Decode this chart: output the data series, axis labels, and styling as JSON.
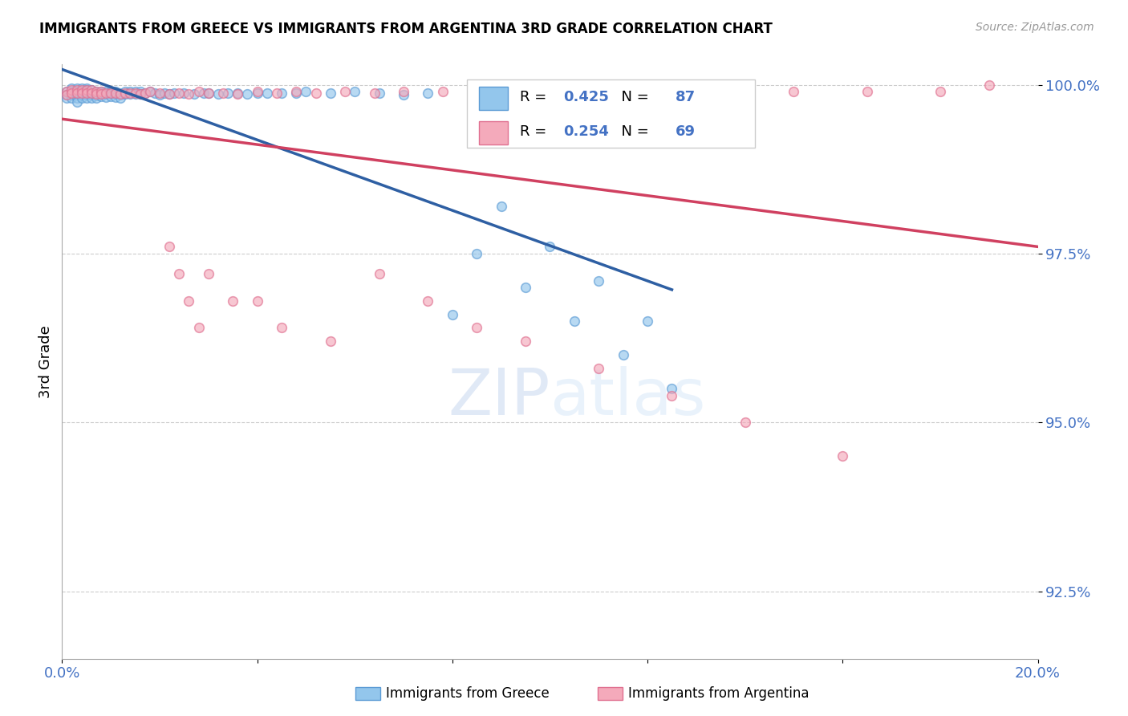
{
  "title": "IMMIGRANTS FROM GREECE VS IMMIGRANTS FROM ARGENTINA 3RD GRADE CORRELATION CHART",
  "source": "Source: ZipAtlas.com",
  "ylabel": "3rd Grade",
  "xlim": [
    0.0,
    0.2
  ],
  "ylim": [
    0.915,
    1.003
  ],
  "yticks": [
    0.925,
    0.95,
    0.975,
    1.0
  ],
  "ytick_labels": [
    "92.5%",
    "95.0%",
    "97.5%",
    "100.0%"
  ],
  "xticks": [
    0.0,
    0.04,
    0.08,
    0.12,
    0.16,
    0.2
  ],
  "xtick_labels": [
    "0.0%",
    "",
    "",
    "",
    "",
    "20.0%"
  ],
  "greece_color": "#93C6EC",
  "argentina_color": "#F4AABB",
  "greece_edge": "#5B9BD5",
  "argentina_edge": "#E07090",
  "trend_greece_color": "#2E5FA3",
  "trend_argentina_color": "#D04060",
  "R_greece": 0.425,
  "N_greece": 87,
  "R_argentina": 0.254,
  "N_argentina": 69,
  "legend_label_greece": "Immigrants from Greece",
  "legend_label_argentina": "Immigrants from Argentina",
  "watermark_zip": "ZIP",
  "watermark_atlas": "atlas",
  "background_color": "#ffffff",
  "tick_color": "#4472C4",
  "title_fontsize": 12,
  "axis_fontsize": 13,
  "marker_size": 70,
  "greece_x": [
    0.001,
    0.001,
    0.001,
    0.002,
    0.002,
    0.002,
    0.002,
    0.003,
    0.003,
    0.003,
    0.003,
    0.003,
    0.004,
    0.004,
    0.004,
    0.004,
    0.005,
    0.005,
    0.005,
    0.005,
    0.005,
    0.006,
    0.006,
    0.006,
    0.006,
    0.007,
    0.007,
    0.007,
    0.007,
    0.008,
    0.008,
    0.008,
    0.009,
    0.009,
    0.009,
    0.01,
    0.01,
    0.01,
    0.011,
    0.011,
    0.011,
    0.012,
    0.012,
    0.012,
    0.013,
    0.013,
    0.014,
    0.014,
    0.015,
    0.015,
    0.016,
    0.016,
    0.017,
    0.018,
    0.019,
    0.02,
    0.021,
    0.022,
    0.023,
    0.025,
    0.027,
    0.029,
    0.03,
    0.032,
    0.034,
    0.036,
    0.038,
    0.04,
    0.042,
    0.045,
    0.048,
    0.05,
    0.055,
    0.06,
    0.065,
    0.07,
    0.075,
    0.08,
    0.085,
    0.09,
    0.095,
    0.1,
    0.105,
    0.11,
    0.115,
    0.12,
    0.125
  ],
  "greece_y": [
    0.999,
    0.9985,
    0.998,
    0.9995,
    0.999,
    0.9985,
    0.998,
    0.9995,
    0.999,
    0.9985,
    0.998,
    0.9975,
    0.9995,
    0.999,
    0.9985,
    0.998,
    0.9995,
    0.9992,
    0.9989,
    0.9985,
    0.998,
    0.9992,
    0.9988,
    0.9985,
    0.998,
    0.999,
    0.9987,
    0.9984,
    0.998,
    0.999,
    0.9987,
    0.9983,
    0.999,
    0.9986,
    0.9982,
    0.999,
    0.9987,
    0.9983,
    0.999,
    0.9986,
    0.9982,
    0.9988,
    0.9985,
    0.9981,
    0.999,
    0.9986,
    0.999,
    0.9986,
    0.999,
    0.9986,
    0.999,
    0.9986,
    0.9988,
    0.999,
    0.9988,
    0.9985,
    0.9988,
    0.9986,
    0.9988,
    0.9987,
    0.9986,
    0.9988,
    0.9987,
    0.9986,
    0.9988,
    0.9987,
    0.9986,
    0.9988,
    0.9987,
    0.9988,
    0.9987,
    0.999,
    0.9988,
    0.999,
    0.9988,
    0.9985,
    0.9988,
    0.966,
    0.975,
    0.982,
    0.97,
    0.976,
    0.965,
    0.971,
    0.96,
    0.965,
    0.955
  ],
  "argentina_x": [
    0.001,
    0.001,
    0.002,
    0.002,
    0.003,
    0.003,
    0.004,
    0.004,
    0.005,
    0.005,
    0.006,
    0.006,
    0.007,
    0.007,
    0.008,
    0.008,
    0.009,
    0.01,
    0.011,
    0.012,
    0.013,
    0.014,
    0.015,
    0.016,
    0.017,
    0.018,
    0.02,
    0.022,
    0.024,
    0.026,
    0.028,
    0.03,
    0.033,
    0.036,
    0.04,
    0.044,
    0.048,
    0.052,
    0.058,
    0.064,
    0.07,
    0.078,
    0.086,
    0.095,
    0.105,
    0.115,
    0.125,
    0.135,
    0.15,
    0.165,
    0.18,
    0.19,
    0.022,
    0.024,
    0.026,
    0.028,
    0.03,
    0.035,
    0.04,
    0.045,
    0.055,
    0.065,
    0.075,
    0.085,
    0.095,
    0.11,
    0.125,
    0.14,
    0.16
  ],
  "argentina_y": [
    0.999,
    0.9985,
    0.9992,
    0.9987,
    0.9992,
    0.9987,
    0.9992,
    0.9987,
    0.9992,
    0.9987,
    0.9992,
    0.9987,
    0.999,
    0.9986,
    0.999,
    0.9986,
    0.9988,
    0.9988,
    0.9988,
    0.9986,
    0.9988,
    0.9988,
    0.9988,
    0.9986,
    0.9988,
    0.999,
    0.9988,
    0.9986,
    0.9988,
    0.9986,
    0.999,
    0.9988,
    0.9988,
    0.9986,
    0.999,
    0.9988,
    0.999,
    0.9988,
    0.999,
    0.9988,
    0.999,
    0.999,
    0.999,
    0.999,
    0.999,
    0.999,
    0.999,
    0.999,
    0.999,
    0.999,
    0.999,
    1.0,
    0.976,
    0.972,
    0.968,
    0.964,
    0.972,
    0.968,
    0.968,
    0.964,
    0.962,
    0.972,
    0.968,
    0.964,
    0.962,
    0.958,
    0.954,
    0.95,
    0.945
  ]
}
